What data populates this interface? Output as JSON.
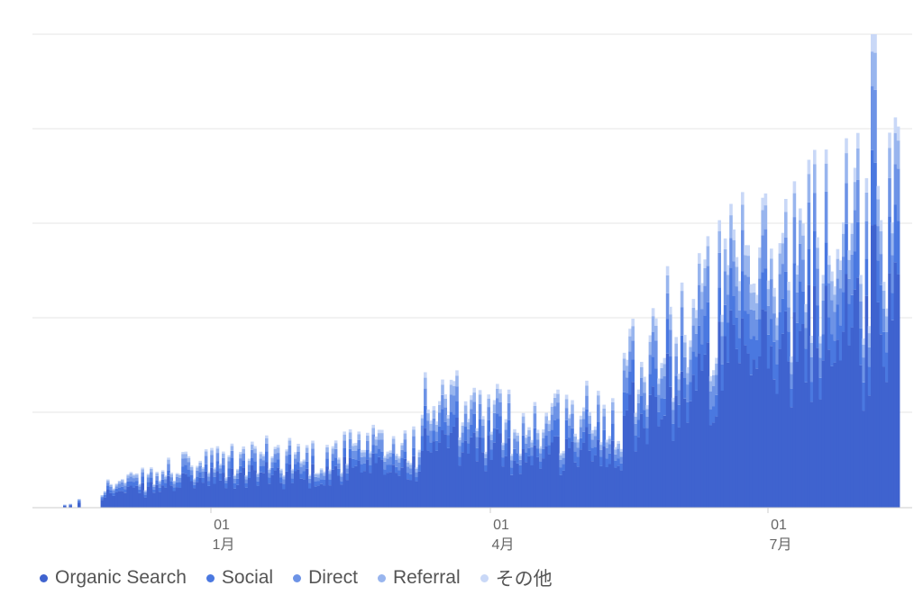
{
  "chart_data": {
    "type": "bar",
    "stacked": true,
    "x_labels": [
      {
        "day": "01",
        "month": "1月"
      },
      {
        "day": "01",
        "month": "4月"
      },
      {
        "day": "01",
        "month": "7月"
      }
    ],
    "series": [
      {
        "name": "Organic Search",
        "color": "#3f63cf"
      },
      {
        "name": "Social",
        "color": "#4a78e0"
      },
      {
        "name": "Direct",
        "color": "#6d93e6"
      },
      {
        "name": "Referral",
        "color": "#98b5ee"
      },
      {
        "name": "その他",
        "color": "#c9d8f7"
      }
    ],
    "grid": true,
    "legend_position": "bottom-left"
  }
}
